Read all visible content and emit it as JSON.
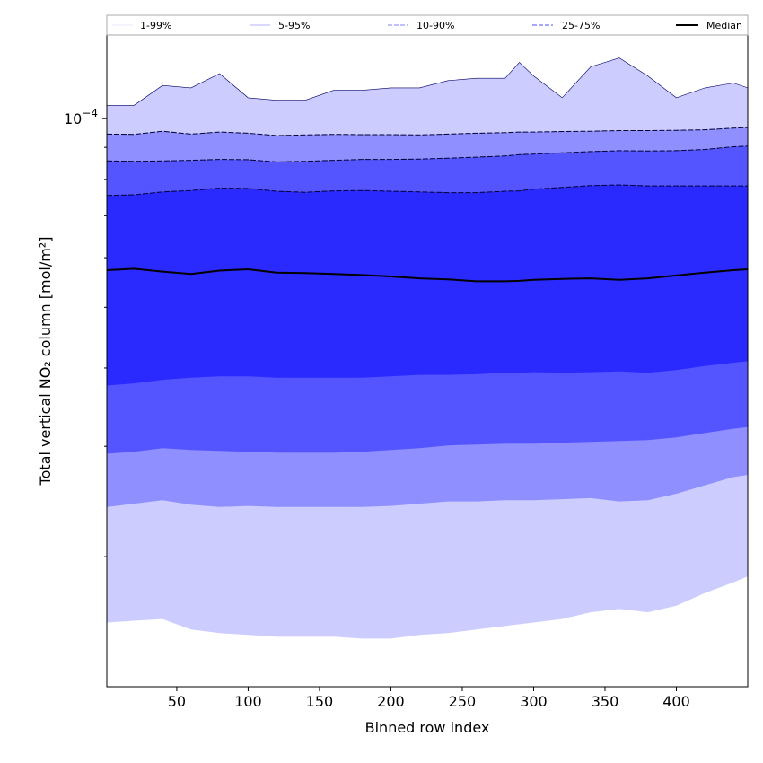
{
  "chart_data": {
    "type": "area",
    "title": "",
    "xlabel": "Binned row index",
    "ylabel": "Total vertical NO₂ column [mol/m²]",
    "y_scale": "log",
    "xlim": [
      1,
      450
    ],
    "ylim": [
      1.24e-05,
      0.000136
    ],
    "xticks": [
      50,
      100,
      150,
      200,
      250,
      300,
      350,
      400
    ],
    "xtick_labels": [
      "50",
      "100",
      "150",
      "200",
      "250",
      "300",
      "350",
      "400"
    ],
    "ytick_major_label": {
      "base": "10",
      "exponent": "−4"
    },
    "ytick_major_value": 0.0001,
    "grid": false,
    "legend": {
      "placement": "top",
      "entries": [
        {
          "label": "1-99%",
          "color": "#e8e8ff",
          "style": "solid"
        },
        {
          "label": "5-95%",
          "color": "#b3b3ff",
          "style": "solid"
        },
        {
          "label": "10-90%",
          "color": "#8080ff",
          "style": "dashed"
        },
        {
          "label": "25-75%",
          "color": "#4d4dff",
          "style": "dashed"
        },
        {
          "label": "Median",
          "color": "#000000",
          "style": "solid"
        }
      ]
    },
    "band_colors": {
      "1-99%": "#ccccff",
      "5-95%": "#8f8fff",
      "10-90%": "#5555ff",
      "25-75%": "#2a2aff"
    },
    "x": [
      1,
      20,
      40,
      60,
      80,
      100,
      120,
      140,
      160,
      180,
      200,
      220,
      240,
      260,
      280,
      290,
      300,
      320,
      340,
      360,
      380,
      400,
      420,
      440,
      450
    ],
    "series": [
      {
        "name": "1-99%",
        "lower": [
          1.57e-05,
          1.58e-05,
          1.59e-05,
          1.53e-05,
          1.51e-05,
          1.5e-05,
          1.49e-05,
          1.49e-05,
          1.49e-05,
          1.48e-05,
          1.48e-05,
          1.5e-05,
          1.51e-05,
          1.53e-05,
          1.55e-05,
          1.56e-05,
          1.57e-05,
          1.59e-05,
          1.63e-05,
          1.65e-05,
          1.63e-05,
          1.67e-05,
          1.75e-05,
          1.82e-05,
          1.86e-05
        ],
        "upper": [
          0.000105,
          0.000105,
          0.000113,
          0.000112,
          0.000118,
          0.000108,
          0.000107,
          0.000107,
          0.000111,
          0.000111,
          0.000112,
          0.000112,
          0.000115,
          0.000116,
          0.000116,
          0.000123,
          0.000117,
          0.000108,
          0.000121,
          0.000125,
          0.000117,
          0.000108,
          0.000112,
          0.000114,
          0.000112
        ]
      },
      {
        "name": "5-95%",
        "lower": [
          2.4e-05,
          2.43e-05,
          2.46e-05,
          2.42e-05,
          2.4e-05,
          2.41e-05,
          2.4e-05,
          2.4e-05,
          2.4e-05,
          2.4e-05,
          2.41e-05,
          2.43e-05,
          2.45e-05,
          2.45e-05,
          2.46e-05,
          2.46e-05,
          2.46e-05,
          2.47e-05,
          2.48e-05,
          2.45e-05,
          2.46e-05,
          2.52e-05,
          2.6e-05,
          2.68e-05,
          2.7e-05
        ],
        "upper": [
          9.45e-05,
          9.44e-05,
          9.55e-05,
          9.45e-05,
          9.52e-05,
          9.48e-05,
          9.4e-05,
          9.42e-05,
          9.44e-05,
          9.43e-05,
          9.43e-05,
          9.42e-05,
          9.45e-05,
          9.48e-05,
          9.5e-05,
          9.52e-05,
          9.52e-05,
          9.54e-05,
          9.55e-05,
          9.57e-05,
          9.57e-05,
          9.58e-05,
          9.6e-05,
          9.66e-05,
          9.68e-05
        ]
      },
      {
        "name": "10-90%",
        "lower": [
          2.92e-05,
          2.94e-05,
          2.98e-05,
          2.96e-05,
          2.95e-05,
          2.94e-05,
          2.93e-05,
          2.93e-05,
          2.93e-05,
          2.94e-05,
          2.96e-05,
          2.98e-05,
          3.01e-05,
          3.02e-05,
          3.03e-05,
          3.03e-05,
          3.03e-05,
          3.04e-05,
          3.05e-05,
          3.06e-05,
          3.07e-05,
          3.1e-05,
          3.15e-05,
          3.2e-05,
          3.22e-05
        ],
        "upper": [
          8.56e-05,
          8.55e-05,
          8.56e-05,
          8.58e-05,
          8.61e-05,
          8.6e-05,
          8.53e-05,
          8.55e-05,
          8.58e-05,
          8.61e-05,
          8.61e-05,
          8.62e-05,
          8.65e-05,
          8.68e-05,
          8.72e-05,
          8.76e-05,
          8.78e-05,
          8.82e-05,
          8.86e-05,
          8.89e-05,
          8.88e-05,
          8.89e-05,
          8.93e-05,
          9.02e-05,
          9.04e-05
        ]
      },
      {
        "name": "25-75%",
        "lower": [
          3.75e-05,
          3.78e-05,
          3.83e-05,
          3.86e-05,
          3.88e-05,
          3.88e-05,
          3.86e-05,
          3.86e-05,
          3.86e-05,
          3.86e-05,
          3.88e-05,
          3.9e-05,
          3.9e-05,
          3.91e-05,
          3.93e-05,
          3.93e-05,
          3.94e-05,
          3.93e-05,
          3.94e-05,
          3.95e-05,
          3.93e-05,
          3.97e-05,
          4.03e-05,
          4.08e-05,
          4.1e-05
        ],
        "upper": [
          7.54e-05,
          7.56e-05,
          7.64e-05,
          7.68e-05,
          7.75e-05,
          7.74e-05,
          7.66e-05,
          7.63e-05,
          7.67e-05,
          7.68e-05,
          7.66e-05,
          7.64e-05,
          7.62e-05,
          7.62e-05,
          7.66e-05,
          7.67e-05,
          7.72e-05,
          7.77e-05,
          7.82e-05,
          7.84e-05,
          7.81e-05,
          7.81e-05,
          7.81e-05,
          7.81e-05,
          7.81e-05
        ]
      },
      {
        "name": "Median",
        "values": [
          5.73e-05,
          5.76e-05,
          5.7e-05,
          5.65e-05,
          5.72e-05,
          5.75e-05,
          5.68e-05,
          5.67e-05,
          5.65e-05,
          5.63e-05,
          5.6e-05,
          5.56e-05,
          5.54e-05,
          5.5e-05,
          5.5e-05,
          5.51e-05,
          5.53e-05,
          5.55e-05,
          5.56e-05,
          5.53e-05,
          5.56e-05,
          5.62e-05,
          5.68e-05,
          5.73e-05,
          5.75e-05
        ]
      }
    ]
  }
}
